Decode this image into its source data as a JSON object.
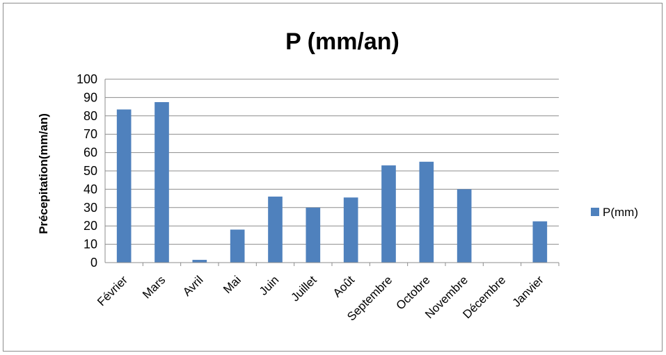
{
  "chart_data": {
    "type": "bar",
    "title": "P (mm/an)",
    "xlabel": "",
    "ylabel": "Précepitation(mm/an)",
    "ylim": [
      0,
      100
    ],
    "ytick_step": 10,
    "grid": true,
    "legend_position": "right",
    "categories": [
      "Février",
      "Mars",
      "Avril",
      "Mai",
      "Juin",
      "Juillet",
      "Août",
      "Septembre",
      "Octobre",
      "Novembre",
      "Décembre",
      "Janvier"
    ],
    "series": [
      {
        "name": "P(mm)",
        "color": "#4f81bd",
        "values": [
          83.5,
          87.5,
          1.5,
          18,
          36,
          30,
          35.5,
          53,
          55,
          40,
          0,
          22.5
        ]
      }
    ]
  }
}
